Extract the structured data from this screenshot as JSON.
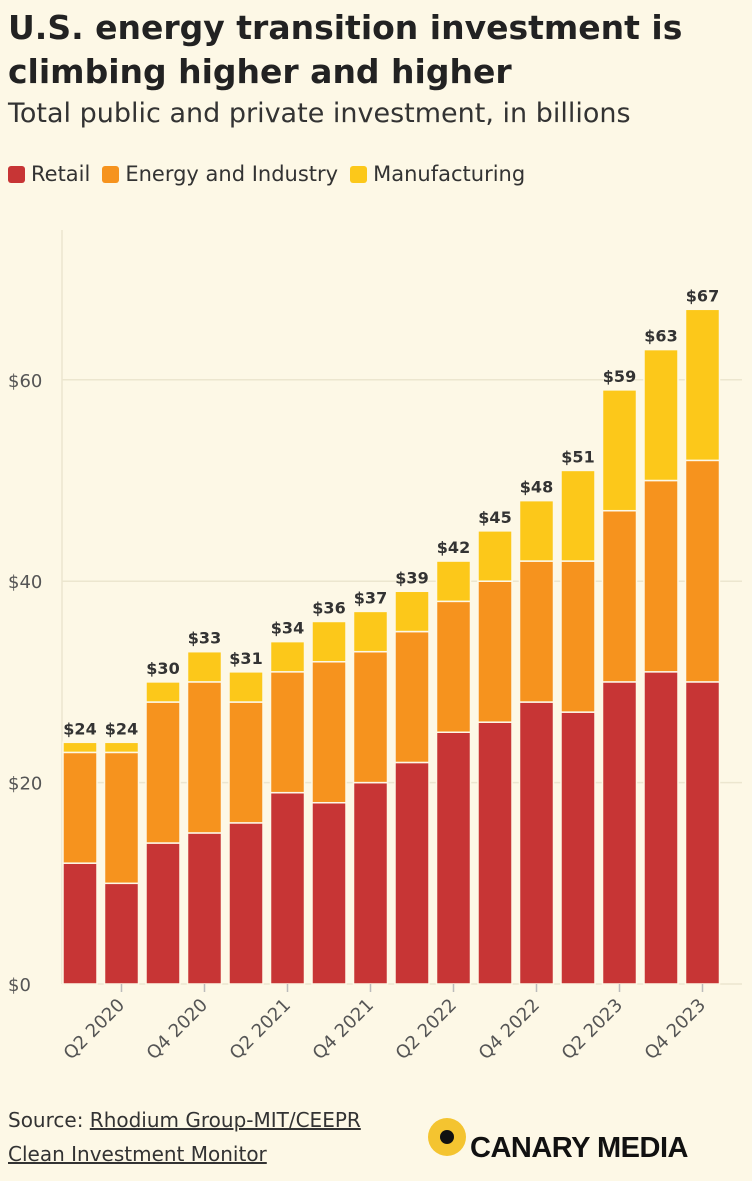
{
  "header": {
    "title": "U.S. energy transition investment is climbing higher and higher",
    "subtitle": "Total public and private investment, in billions"
  },
  "legend": {
    "items": [
      {
        "label": "Retail",
        "color": "#c73535"
      },
      {
        "label": "Energy and Industry",
        "color": "#f6931e"
      },
      {
        "label": "Manufacturing",
        "color": "#fcc81a"
      }
    ]
  },
  "chart_data": {
    "type": "bar",
    "stacked": true,
    "categories": [
      "Q1 2020",
      "Q2 2020",
      "Q3 2020",
      "Q4 2020",
      "Q1 2021",
      "Q2 2021",
      "Q3 2021",
      "Q4 2021",
      "Q1 2022",
      "Q2 2022",
      "Q3 2022",
      "Q4 2022",
      "Q1 2023",
      "Q2 2023",
      "Q3 2023",
      "Q4 2023"
    ],
    "x_tick_labels": [
      "Q2 2020",
      "Q4 2020",
      "Q2 2021",
      "Q4 2021",
      "Q2 2022",
      "Q4 2022",
      "Q2 2023",
      "Q4 2023"
    ],
    "series": [
      {
        "name": "Retail",
        "color": "#c73535",
        "values": [
          12,
          10,
          14,
          15,
          16,
          19,
          18,
          20,
          22,
          25,
          26,
          28,
          27,
          30,
          31,
          30
        ]
      },
      {
        "name": "Energy and Industry",
        "color": "#f6931e",
        "values": [
          11,
          13,
          14,
          15,
          12,
          12,
          14,
          13,
          13,
          13,
          14,
          14,
          15,
          17,
          19,
          22
        ]
      },
      {
        "name": "Manufacturing",
        "color": "#fcc81a",
        "values": [
          1,
          1,
          2,
          3,
          3,
          3,
          4,
          4,
          4,
          4,
          5,
          6,
          9,
          12,
          13,
          15
        ]
      }
    ],
    "totals": [
      "$24",
      "$24",
      "$30",
      "$33",
      "$31",
      "$34",
      "$36",
      "$37",
      "$39",
      "$42",
      "$45",
      "$48",
      "$51",
      "$59",
      "$63",
      "$67"
    ],
    "y_ticks": [
      "$0",
      "$20",
      "$40",
      "$60"
    ],
    "y_tick_values": [
      0,
      20,
      40,
      60
    ],
    "ylim": [
      0,
      75
    ],
    "grid": true
  },
  "footer": {
    "source_prefix": "Source: ",
    "source_link_line1": "Rhodium Group-MIT/CEEPR",
    "source_link_line2": "Clean Investment Monitor",
    "brand": "CANARY MEDIA"
  }
}
